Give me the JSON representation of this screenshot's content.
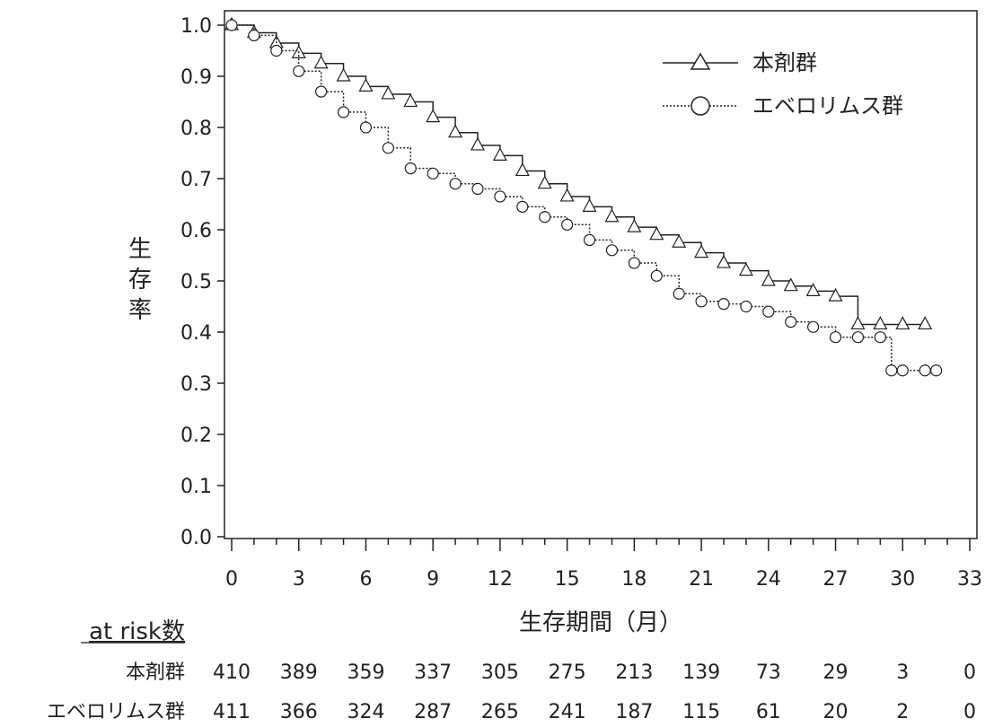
{
  "chart_data": {
    "type": "line",
    "ylabel": "生存率",
    "xlabel": "生存期間（月）",
    "xlim": [
      0,
      33
    ],
    "ylim": [
      0.0,
      1.0
    ],
    "xticks": [
      "0",
      "3",
      "6",
      "9",
      "12",
      "15",
      "18",
      "21",
      "24",
      "27",
      "30",
      "33"
    ],
    "yticks": [
      "0.0",
      "0.1",
      "0.2",
      "0.3",
      "0.4",
      "0.5",
      "0.6",
      "0.7",
      "0.8",
      "0.9",
      "1.0"
    ],
    "legend_position": "top-right",
    "grid": false,
    "series": [
      {
        "name": "本剤群",
        "marker": "triangle",
        "line_style": "solid",
        "x": [
          0,
          1,
          2,
          3,
          4,
          5,
          6,
          7,
          8,
          9,
          10,
          11,
          12,
          13,
          14,
          15,
          16,
          17,
          18,
          19,
          20,
          21,
          22,
          23,
          24,
          25,
          26,
          27,
          28,
          29,
          30,
          31
        ],
        "y": [
          1.0,
          0.985,
          0.965,
          0.945,
          0.925,
          0.9,
          0.88,
          0.865,
          0.85,
          0.82,
          0.79,
          0.765,
          0.745,
          0.715,
          0.69,
          0.665,
          0.645,
          0.625,
          0.605,
          0.59,
          0.575,
          0.555,
          0.535,
          0.52,
          0.5,
          0.49,
          0.48,
          0.47,
          0.415,
          0.415,
          0.415,
          0.415
        ]
      },
      {
        "name": "エベロリムス群",
        "marker": "circle",
        "line_style": "dotted",
        "x": [
          0,
          1,
          2,
          3,
          4,
          5,
          6,
          7,
          8,
          9,
          10,
          11,
          12,
          13,
          14,
          15,
          16,
          17,
          18,
          19,
          20,
          21,
          22,
          23,
          24,
          25,
          26,
          27,
          28,
          29,
          29.5,
          30,
          31,
          31.5
        ],
        "y": [
          1.0,
          0.98,
          0.95,
          0.91,
          0.87,
          0.83,
          0.8,
          0.76,
          0.72,
          0.71,
          0.69,
          0.68,
          0.665,
          0.645,
          0.625,
          0.61,
          0.58,
          0.56,
          0.535,
          0.51,
          0.475,
          0.46,
          0.455,
          0.45,
          0.44,
          0.42,
          0.41,
          0.39,
          0.39,
          0.39,
          0.325,
          0.325,
          0.325,
          0.325
        ]
      }
    ],
    "risk_table": {
      "title": "at risk数",
      "rows": [
        {
          "label": "本剤群",
          "values": [
            "410",
            "389",
            "359",
            "337",
            "305",
            "275",
            "213",
            "139",
            "73",
            "29",
            "3",
            "0"
          ]
        },
        {
          "label": "エベロリムス群",
          "values": [
            "411",
            "366",
            "324",
            "287",
            "265",
            "241",
            "187",
            "115",
            "61",
            "20",
            "2",
            "0"
          ]
        }
      ]
    }
  },
  "colors": {
    "line": "#222222",
    "background": "#ffffff"
  }
}
